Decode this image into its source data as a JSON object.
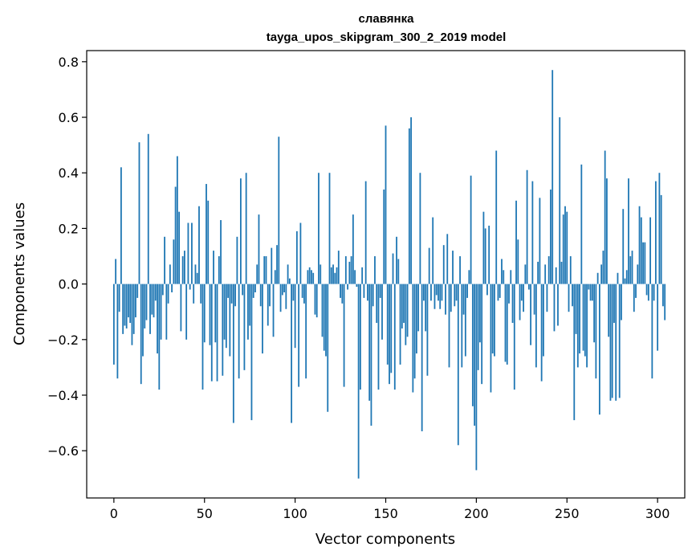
{
  "chart_data": {
    "type": "bar",
    "title": "славянка",
    "subtitle": "tayga_upos_skipgram_300_2_2019 model",
    "xlabel": "Vector components",
    "ylabel": "Components values",
    "xlim": [
      -15,
      315
    ],
    "ylim": [
      -0.77,
      0.84
    ],
    "xticks": [
      0,
      50,
      100,
      150,
      200,
      250,
      300
    ],
    "yticks": [
      -0.6,
      -0.4,
      -0.2,
      0.0,
      0.2,
      0.4,
      0.6,
      0.8
    ],
    "ytick_labels": [
      "−0.6",
      "−0.4",
      "−0.2",
      "0.0",
      "0.2",
      "0.4",
      "0.6",
      "0.8"
    ],
    "bar_color": "#1f77b4",
    "grid": false,
    "values": [
      -0.29,
      0.09,
      -0.34,
      -0.1,
      0.42,
      -0.18,
      -0.15,
      -0.16,
      -0.12,
      -0.14,
      -0.22,
      -0.18,
      -0.12,
      -0.05,
      0.51,
      -0.36,
      -0.26,
      -0.16,
      -0.13,
      0.54,
      -0.18,
      -0.11,
      -0.12,
      -0.06,
      -0.25,
      -0.38,
      -0.2,
      -0.04,
      0.17,
      -0.2,
      -0.07,
      0.07,
      -0.03,
      0.16,
      0.35,
      0.46,
      0.26,
      -0.17,
      0.1,
      0.12,
      -0.2,
      0.22,
      -0.02,
      0.22,
      -0.07,
      0.07,
      0.04,
      0.28,
      -0.07,
      -0.38,
      -0.21,
      0.36,
      0.3,
      -0.22,
      -0.35,
      0.12,
      -0.21,
      -0.35,
      0.1,
      0.23,
      -0.33,
      -0.2,
      -0.23,
      -0.05,
      -0.26,
      -0.07,
      -0.5,
      -0.08,
      0.17,
      -0.34,
      0.38,
      -0.04,
      -0.31,
      0.4,
      -0.2,
      -0.15,
      -0.49,
      -0.05,
      -0.03,
      0.07,
      0.25,
      -0.08,
      -0.25,
      0.1,
      0.1,
      -0.15,
      -0.08,
      0.13,
      -0.19,
      0.05,
      0.14,
      0.53,
      -0.1,
      -0.04,
      -0.03,
      -0.09,
      0.07,
      0.02,
      -0.5,
      -0.06,
      -0.23,
      0.19,
      -0.37,
      0.22,
      -0.05,
      -0.07,
      -0.34,
      0.05,
      0.06,
      0.05,
      0.04,
      -0.11,
      -0.12,
      0.4,
      0.07,
      -0.19,
      -0.24,
      -0.26,
      -0.46,
      0.4,
      0.06,
      0.07,
      0.04,
      0.06,
      0.12,
      -0.05,
      -0.07,
      -0.37,
      0.1,
      -0.02,
      0.08,
      0.1,
      0.25,
      0.05,
      -0.01,
      -0.7,
      -0.38,
      0.06,
      -0.05,
      0.37,
      -0.06,
      -0.42,
      -0.51,
      -0.08,
      0.1,
      -0.14,
      -0.38,
      -0.05,
      -0.2,
      0.34,
      0.57,
      -0.29,
      -0.36,
      -0.32,
      0.11,
      -0.38,
      0.17,
      0.09,
      -0.29,
      -0.16,
      -0.14,
      -0.22,
      -0.19,
      0.56,
      0.6,
      -0.39,
      -0.34,
      -0.25,
      -0.17,
      0.4,
      -0.53,
      -0.06,
      -0.17,
      -0.33,
      0.13,
      -0.06,
      0.24,
      -0.09,
      -0.04,
      -0.06,
      -0.09,
      -0.06,
      0.14,
      -0.11,
      0.18,
      -0.3,
      -0.1,
      0.12,
      -0.08,
      -0.06,
      -0.58,
      0.1,
      -0.3,
      -0.11,
      -0.26,
      -0.05,
      0.05,
      0.39,
      -0.44,
      -0.51,
      -0.67,
      -0.31,
      -0.21,
      -0.36,
      0.26,
      0.2,
      -0.04,
      0.21,
      -0.39,
      -0.25,
      -0.26,
      0.48,
      -0.06,
      -0.05,
      0.09,
      0.05,
      -0.28,
      -0.29,
      -0.07,
      0.05,
      -0.14,
      -0.38,
      0.3,
      0.16,
      -0.13,
      -0.06,
      -0.1,
      0.07,
      0.41,
      -0.02,
      -0.22,
      0.37,
      -0.11,
      -0.3,
      0.08,
      0.31,
      -0.35,
      -0.26,
      0.07,
      -0.1,
      0.1,
      0.34,
      0.77,
      -0.17,
      0.06,
      -0.15,
      0.6,
      0.08,
      0.25,
      0.28,
      0.26,
      -0.1,
      0.1,
      -0.08,
      -0.49,
      -0.18,
      -0.3,
      -0.25,
      0.43,
      -0.24,
      -0.26,
      -0.3,
      -0.02,
      -0.06,
      -0.06,
      -0.21,
      -0.34,
      0.04,
      -0.47,
      0.07,
      0.12,
      0.48,
      0.38,
      -0.19,
      -0.42,
      -0.41,
      -0.14,
      -0.42,
      0.04,
      -0.41,
      -0.13,
      0.27,
      0.02,
      0.05,
      0.38,
      0.1,
      0.12,
      -0.1,
      -0.05,
      0.07,
      0.28,
      0.24,
      0.15,
      0.15,
      -0.04,
      -0.06,
      0.24,
      -0.34,
      -0.06,
      0.37,
      -0.24,
      0.4,
      0.32,
      -0.08,
      -0.13
    ]
  }
}
